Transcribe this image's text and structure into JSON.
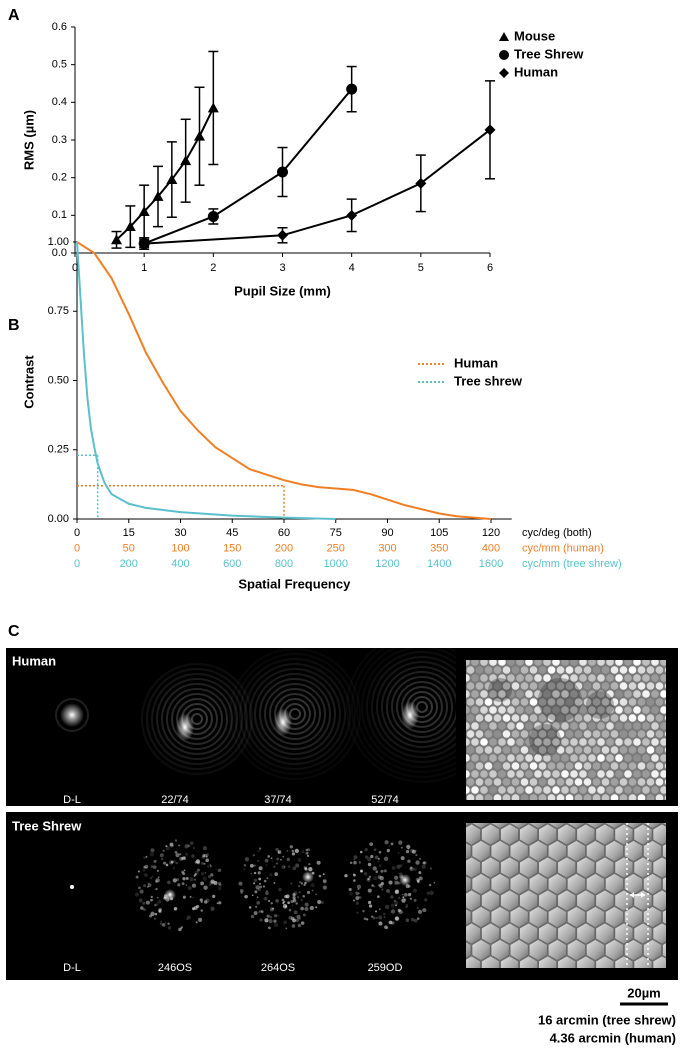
{
  "chart_data": [
    {
      "type": "line",
      "panel": "A",
      "xlabel": "Pupil Size (mm)",
      "ylabel": "RMS (µm)",
      "xlim": [
        0,
        6
      ],
      "xticks": [
        0,
        1,
        2,
        3,
        4,
        5,
        6
      ],
      "ylim": [
        0,
        0.6
      ],
      "yticks": [
        {
          "value": 0,
          "label": "0.0"
        },
        0.1,
        0.2,
        0.3,
        0.4,
        0.5,
        0.6
      ],
      "legend": "upper right",
      "series": [
        {
          "name": "Mouse",
          "color": "#000000",
          "marker": "triangle",
          "x": [
            0.6,
            0.8,
            1.0,
            1.2,
            1.4,
            1.6,
            1.8,
            2.0
          ],
          "values": [
            0.035,
            0.07,
            0.11,
            0.15,
            0.195,
            0.245,
            0.31,
            0.385
          ],
          "errors": [
            0.022,
            0.055,
            0.07,
            0.08,
            0.1,
            0.11,
            0.13,
            0.15
          ]
        },
        {
          "name": "Tree Shrew",
          "color": "#000000",
          "marker": "circle",
          "x": [
            1,
            2,
            3,
            4
          ],
          "values": [
            0.025,
            0.097,
            0.215,
            0.435
          ],
          "errors": [
            0.015,
            0.02,
            0.065,
            0.06
          ]
        },
        {
          "name": "Human",
          "color": "#000000",
          "marker": "diamond",
          "x": [
            1,
            3,
            4,
            5,
            6
          ],
          "values": [
            0.025,
            0.047,
            0.1,
            0.185,
            0.327
          ],
          "errors": [
            0.01,
            0.02,
            0.043,
            0.075,
            0.13
          ]
        }
      ]
    },
    {
      "type": "line",
      "panel": "B",
      "xlabel": "Spatial Frequency",
      "ylabel": "Contrast",
      "xlim": [
        0,
        126
      ],
      "xticks": [
        0,
        15,
        30,
        45,
        60,
        75,
        90,
        105,
        120
      ],
      "xticks_unit": "cyc/deg (both)",
      "ylim": [
        0,
        1
      ],
      "yticks": [
        {
          "value": 0,
          "label": "0.00"
        },
        {
          "value": 0.25,
          "label": "0.25"
        },
        {
          "value": 0.5,
          "label": "0.50"
        },
        {
          "value": 0.75,
          "label": "0.75"
        },
        {
          "value": 1,
          "label": "1.00"
        }
      ],
      "secondary_xticks": [
        {
          "unit": "cyc/mm (human)",
          "color": "#f07f24",
          "xlim": [
            0,
            420
          ],
          "ticks": [
            0,
            50,
            100,
            150,
            200,
            250,
            300,
            350,
            400
          ]
        },
        {
          "unit": "cyc/mm (tree shrew)",
          "color": "#5bc0cc",
          "xlim": [
            0,
            1680
          ],
          "ticks": [
            0,
            200,
            400,
            600,
            800,
            1000,
            1200,
            1400,
            1600
          ]
        }
      ],
      "legend": "upper right",
      "series": [
        {
          "name": "Human",
          "color": "#f07f24",
          "x": [
            0,
            5,
            10,
            15,
            20,
            25,
            30,
            35,
            40,
            45,
            50,
            55,
            60,
            65,
            70,
            75,
            80,
            85,
            90,
            95,
            100,
            105,
            110,
            115,
            120
          ],
          "values": [
            1.0,
            0.96,
            0.87,
            0.74,
            0.6,
            0.49,
            0.39,
            0.32,
            0.26,
            0.22,
            0.18,
            0.16,
            0.14,
            0.125,
            0.115,
            0.11,
            0.105,
            0.09,
            0.07,
            0.05,
            0.035,
            0.02,
            0.01,
            0.005,
            0.0
          ]
        },
        {
          "name": "Tree shrew",
          "color": "#5bc0cc",
          "x": [
            0,
            1,
            2,
            3,
            4,
            5,
            6,
            8,
            10,
            15,
            20,
            30,
            45,
            60,
            75
          ],
          "values": [
            1.0,
            0.8,
            0.6,
            0.44,
            0.33,
            0.26,
            0.2,
            0.13,
            0.09,
            0.055,
            0.04,
            0.025,
            0.012,
            0.005,
            0.0
          ]
        }
      ],
      "guides": [
        {
          "series": 0,
          "x": 60,
          "y": 0.12
        },
        {
          "series": 1,
          "x": 6,
          "y": 0.23
        }
      ]
    }
  ],
  "panel_c": {
    "panel": "C",
    "rows": [
      {
        "label": "Human",
        "images": [
          "D-L",
          "22/74",
          "37/74",
          "52/74"
        ]
      },
      {
        "label": "Tree Shrew",
        "images": [
          "D-L",
          "246OS",
          "264OS",
          "259OD"
        ]
      }
    ],
    "scale_bar": {
      "label": "20µm",
      "notes": [
        "16 arcmin (tree shrew)",
        "4.36 arcmin (human)"
      ]
    }
  }
}
